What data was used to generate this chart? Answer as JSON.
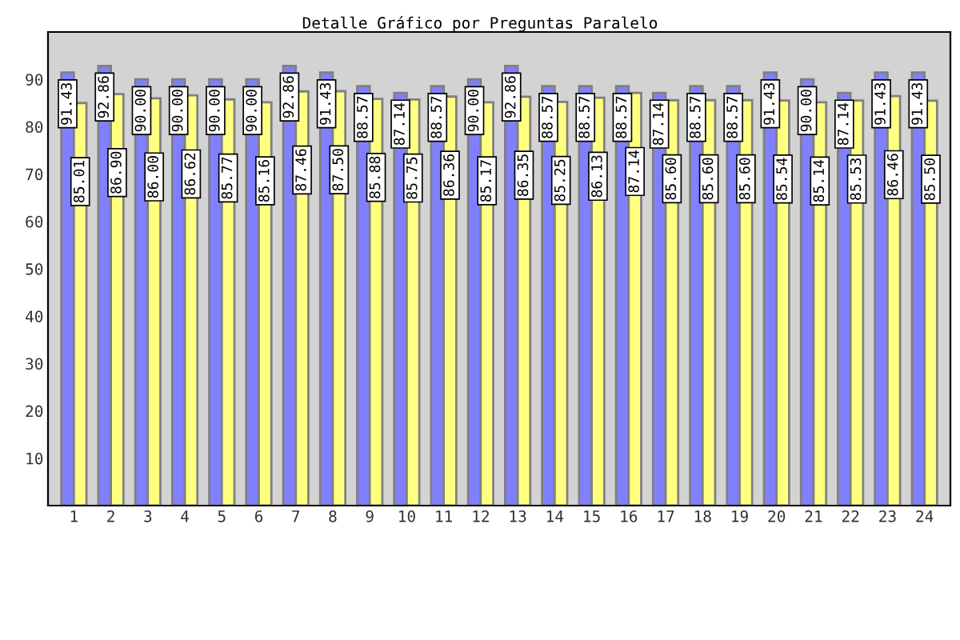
{
  "chart_data": {
    "type": "bar",
    "title": "Detalle Gráfico por Preguntas Paralelo",
    "categories": [
      "1",
      "2",
      "3",
      "4",
      "5",
      "6",
      "7",
      "8",
      "9",
      "10",
      "11",
      "12",
      "13",
      "14",
      "15",
      "16",
      "17",
      "18",
      "19",
      "20",
      "21",
      "22",
      "23",
      "24"
    ],
    "series": [
      {
        "color": "#8080ff",
        "values": [
          91.43,
          92.86,
          90.0,
          90.0,
          90.0,
          90.0,
          92.86,
          91.43,
          88.57,
          87.14,
          88.57,
          90.0,
          92.86,
          88.57,
          88.57,
          88.57,
          87.14,
          88.57,
          88.57,
          91.43,
          90.0,
          87.14,
          91.43,
          91.43
        ],
        "value_labels": [
          "91.43",
          "92.86",
          "90.00",
          "90.00",
          "90.00",
          "90.00",
          "92.86",
          "91.43",
          "88.57",
          "87.14",
          "88.57",
          "90.00",
          "92.86",
          "88.57",
          "88.57",
          "88.57",
          "87.14",
          "88.57",
          "88.57",
          "91.43",
          "90.00",
          "87.14",
          "91.43",
          "91.43"
        ]
      },
      {
        "color": "#ffff80",
        "values": [
          85.01,
          86.9,
          86.0,
          86.62,
          85.77,
          85.16,
          87.46,
          87.5,
          85.88,
          85.75,
          86.36,
          85.17,
          86.35,
          85.25,
          86.13,
          87.14,
          85.6,
          85.6,
          85.6,
          85.54,
          85.14,
          85.53,
          86.46,
          85.5
        ],
        "value_labels": [
          "85.01",
          "86.90",
          "86.00",
          "86.62",
          "85.77",
          "85.16",
          "87.46",
          "87.50",
          "85.88",
          "85.75",
          "86.36",
          "85.17",
          "86.35",
          "85.25",
          "86.13",
          "87.14",
          "85.60",
          "85.60",
          "85.60",
          "85.54",
          "85.14",
          "85.53",
          "86.46",
          "85.50"
        ]
      }
    ],
    "ylim": [
      0,
      100
    ],
    "yticks": [
      10,
      20,
      30,
      40,
      50,
      60,
      70,
      80,
      90
    ],
    "grid": false,
    "legend": false
  }
}
